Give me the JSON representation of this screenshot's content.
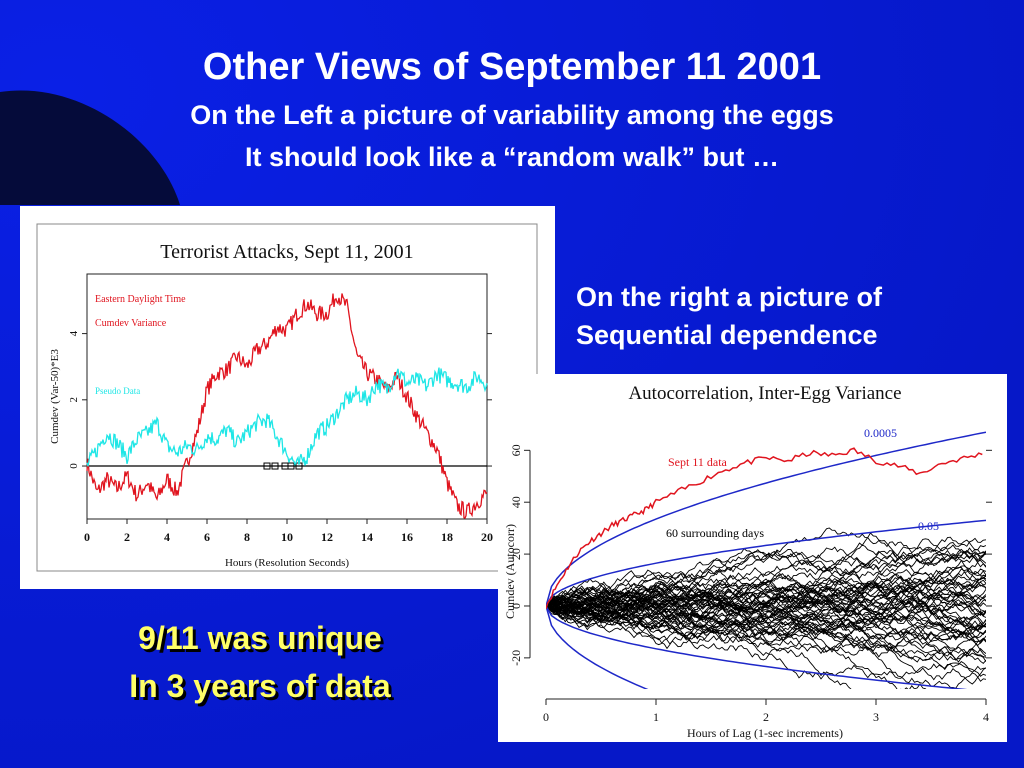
{
  "slide": {
    "title": "Other Views of September 11 2001",
    "subtitle1": "On the Left a picture of variability among the eggs",
    "subtitle2": "It should look like a “random walk” but …",
    "right_note_line1": "On the right a picture of",
    "right_note_line2": "Sequential dependence",
    "unique_line1": "9/11 was unique",
    "unique_line2": "In 3 years of data",
    "colors": {
      "background": "#0a1ee0",
      "accent_text": "#ffff66",
      "text": "#ffffff"
    }
  },
  "chart_data": [
    {
      "type": "line",
      "title": "Terrorist Attacks, Sept 11, 2001",
      "xlabel": "Hours (Resolution Seconds)",
      "ylabel": "Cumdev (Var-50)*E3",
      "xlim": [
        0,
        20
      ],
      "ylim": [
        -1.6,
        5.8
      ],
      "xticks": [
        0,
        2,
        4,
        6,
        8,
        10,
        12,
        14,
        16,
        18,
        20
      ],
      "yticks": [
        0,
        2,
        4
      ],
      "annotations": [
        "Eastern Daylight Time",
        "Cumdev Variance",
        "Pseudo Data"
      ],
      "series": [
        {
          "name": "Cumdev Variance",
          "color": "#e0141e",
          "x": [
            0,
            0.5,
            1,
            1.5,
            2,
            2.5,
            3,
            3.5,
            4,
            4.5,
            5,
            5.5,
            6,
            6.5,
            7,
            7.5,
            8,
            8.5,
            9,
            9.5,
            10,
            10.5,
            11,
            11.5,
            12,
            12.5,
            13,
            13.5,
            14,
            14.5,
            15,
            15.5,
            16,
            16.5,
            17,
            17.5,
            18,
            18.5,
            19,
            19.5,
            20
          ],
          "y": [
            0.1,
            -0.8,
            -0.4,
            -0.7,
            -0.3,
            -0.9,
            -0.5,
            -1.0,
            -0.4,
            -0.8,
            0.1,
            1.0,
            2.3,
            2.8,
            2.9,
            3.3,
            3.0,
            3.5,
            3.7,
            4.2,
            4.1,
            4.6,
            4.9,
            4.6,
            4.6,
            5.2,
            4.8,
            3.3,
            2.8,
            2.6,
            2.3,
            2.7,
            2.1,
            1.5,
            1.0,
            0.5,
            -0.5,
            -1.2,
            -1.4,
            -1.1,
            -0.8
          ]
        },
        {
          "name": "Pseudo Data",
          "color": "#1ee6e6",
          "x": [
            0,
            0.5,
            1,
            1.5,
            2,
            2.5,
            3,
            3.5,
            4,
            4.5,
            5,
            5.5,
            6,
            6.5,
            7,
            7.5,
            8,
            8.5,
            9,
            9.5,
            10,
            10.5,
            11,
            11.5,
            12,
            12.5,
            13,
            13.5,
            14,
            14.5,
            15,
            15.5,
            16,
            16.5,
            17,
            17.5,
            18,
            18.5,
            19,
            19.5,
            20
          ],
          "y": [
            0.0,
            0.5,
            1.0,
            0.7,
            0.3,
            0.8,
            1.0,
            1.3,
            0.6,
            0.4,
            0.6,
            0.5,
            0.9,
            0.8,
            1.1,
            0.7,
            1.0,
            1.3,
            1.4,
            0.9,
            0.4,
            0.0,
            0.3,
            1.0,
            1.2,
            1.6,
            2.0,
            2.2,
            2.0,
            2.5,
            2.3,
            2.9,
            2.5,
            2.6,
            2.4,
            2.8,
            2.6,
            2.5,
            2.4,
            2.7,
            2.5
          ]
        }
      ],
      "baseline_y": 0
    },
    {
      "type": "line",
      "title": "Autocorrelation, Inter-Egg Variance",
      "xlabel": "Hours of Lag (1-sec increments)",
      "ylabel": "Cumdev (Autocorr)",
      "xlim": [
        0,
        4
      ],
      "ylim": [
        -32,
        74
      ],
      "xticks": [
        0,
        1,
        2,
        3,
        4
      ],
      "yticks": [
        -20,
        0,
        20,
        40,
        60
      ],
      "annotations": [
        "Sept 11 data",
        "60 surrounding days",
        "0.0005",
        "0.05"
      ],
      "envelopes": [
        {
          "label": "0.0005",
          "color": "#1e28c8",
          "coef": 33.5
        },
        {
          "label": "0.05",
          "color": "#1e28c8",
          "coef": 16.5
        }
      ],
      "series": [
        {
          "name": "Sept 11 data",
          "color": "#e0141e",
          "x": [
            0,
            0.1,
            0.2,
            0.3,
            0.4,
            0.5,
            0.6,
            0.7,
            0.8,
            0.9,
            1.0,
            1.2,
            1.4,
            1.6,
            1.8,
            2.0,
            2.2,
            2.4,
            2.6,
            2.8,
            3.0,
            3.2,
            3.4,
            3.6,
            3.8,
            4.0
          ],
          "y": [
            0,
            8,
            15,
            21,
            25,
            28,
            31,
            33,
            35,
            37,
            40,
            44,
            48,
            52,
            55,
            57,
            56,
            59,
            58,
            60,
            56,
            54,
            51,
            55,
            57,
            59
          ]
        }
      ],
      "surrounding_days": {
        "count": 60,
        "color": "#000000"
      }
    }
  ]
}
